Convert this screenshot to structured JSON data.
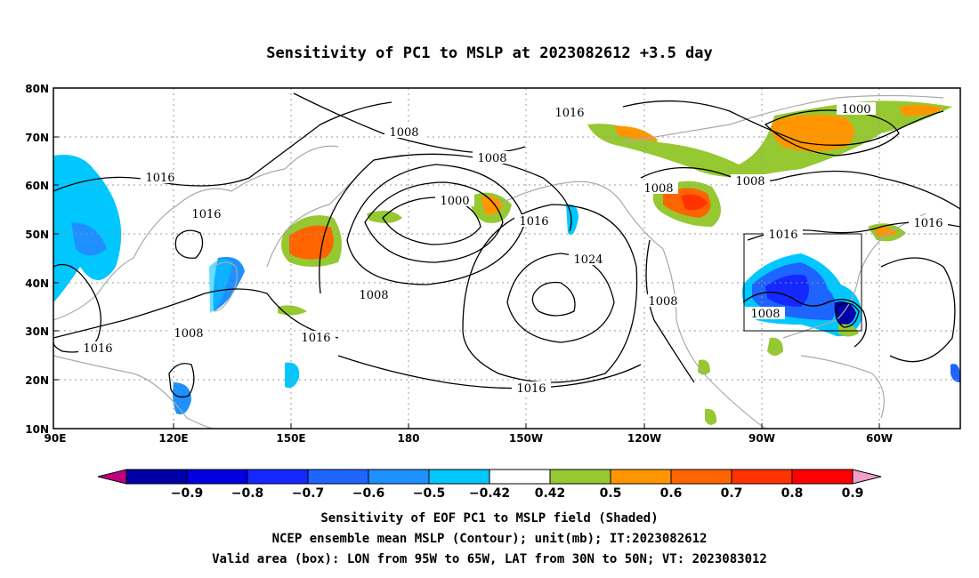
{
  "title": "Sensitivity of PC1 to MSLP at 2023082612 +3.5 day",
  "lat_labels": [
    "80N",
    "70N",
    "60N",
    "50N",
    "40N",
    "30N",
    "20N",
    "10N"
  ],
  "lon_labels": [
    "90E",
    "120E",
    "150E",
    "180",
    "150W",
    "120W",
    "90W",
    "60W"
  ],
  "contour_labels": [
    "1016",
    "1008",
    "1016",
    "1008",
    "1000",
    "1016",
    "1024",
    "1016",
    "1008",
    "1000",
    "1008",
    "1016",
    "1016",
    "1008",
    "1008",
    "1008",
    "1016",
    "1016"
  ],
  "colorbar": {
    "labels": [
      "-0.9",
      "-0.8",
      "-0.7",
      "-0.6",
      "-0.5",
      "-0.42",
      "0.42",
      "0.5",
      "0.6",
      "0.7",
      "0.8",
      "0.9"
    ],
    "colors": [
      "#c0007f",
      "#0000a8",
      "#0000e0",
      "#1428ff",
      "#1e64ff",
      "#1e90ff",
      "#00c8ff",
      "#ffffff",
      "#96c832",
      "#ff9600",
      "#ff6400",
      "#ff3200",
      "#ff0000",
      "#f0a0c8"
    ]
  },
  "valid_area": {
    "lon_from": "95W",
    "lon_to": "65W",
    "lat_from": "30N",
    "lat_to": "50N"
  },
  "captions": {
    "line1": "Sensitivity of EOF PC1 to MSLP field (Shaded)",
    "line2": "NCEP ensemble mean MSLP (Contour); unit(mb); IT:2023082612",
    "line3": "Valid area (box): LON from 95W to 65W, LAT from 30N to 50N; VT: 2023083012"
  }
}
